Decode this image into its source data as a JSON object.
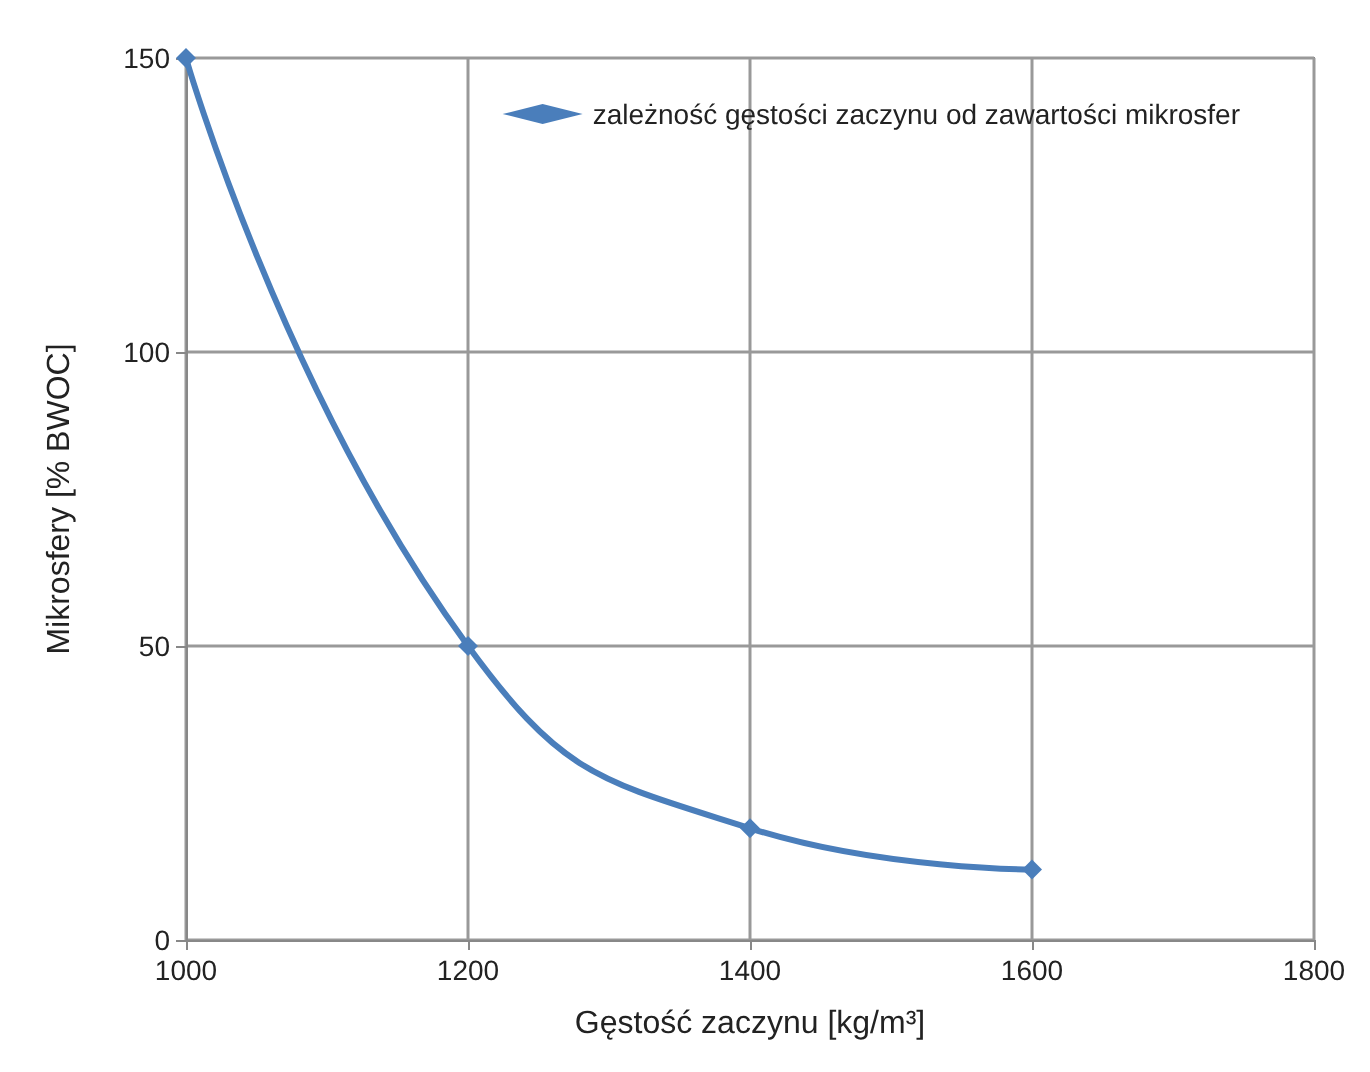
{
  "chart_data": {
    "type": "line",
    "xlabel": "Gęstość zaczynu [kg/m³]",
    "ylabel": "Mikrosfery [% BWOC]",
    "x": [
      1000,
      1200,
      1400,
      1600
    ],
    "series": [
      {
        "name": "zależność gęstości zaczynu od zawartości mikrosfer",
        "color": "#4a7ebb",
        "values": [
          150,
          50,
          19,
          12
        ]
      }
    ],
    "xlim": [
      1000,
      1800
    ],
    "xticks": [
      1000,
      1200,
      1400,
      1600,
      1800
    ],
    "ylim": [
      0,
      150
    ],
    "yticks": [
      0,
      50,
      100,
      150
    ],
    "grid": true,
    "legend": "top right",
    "marker": "diamond",
    "line_style": "solid"
  }
}
